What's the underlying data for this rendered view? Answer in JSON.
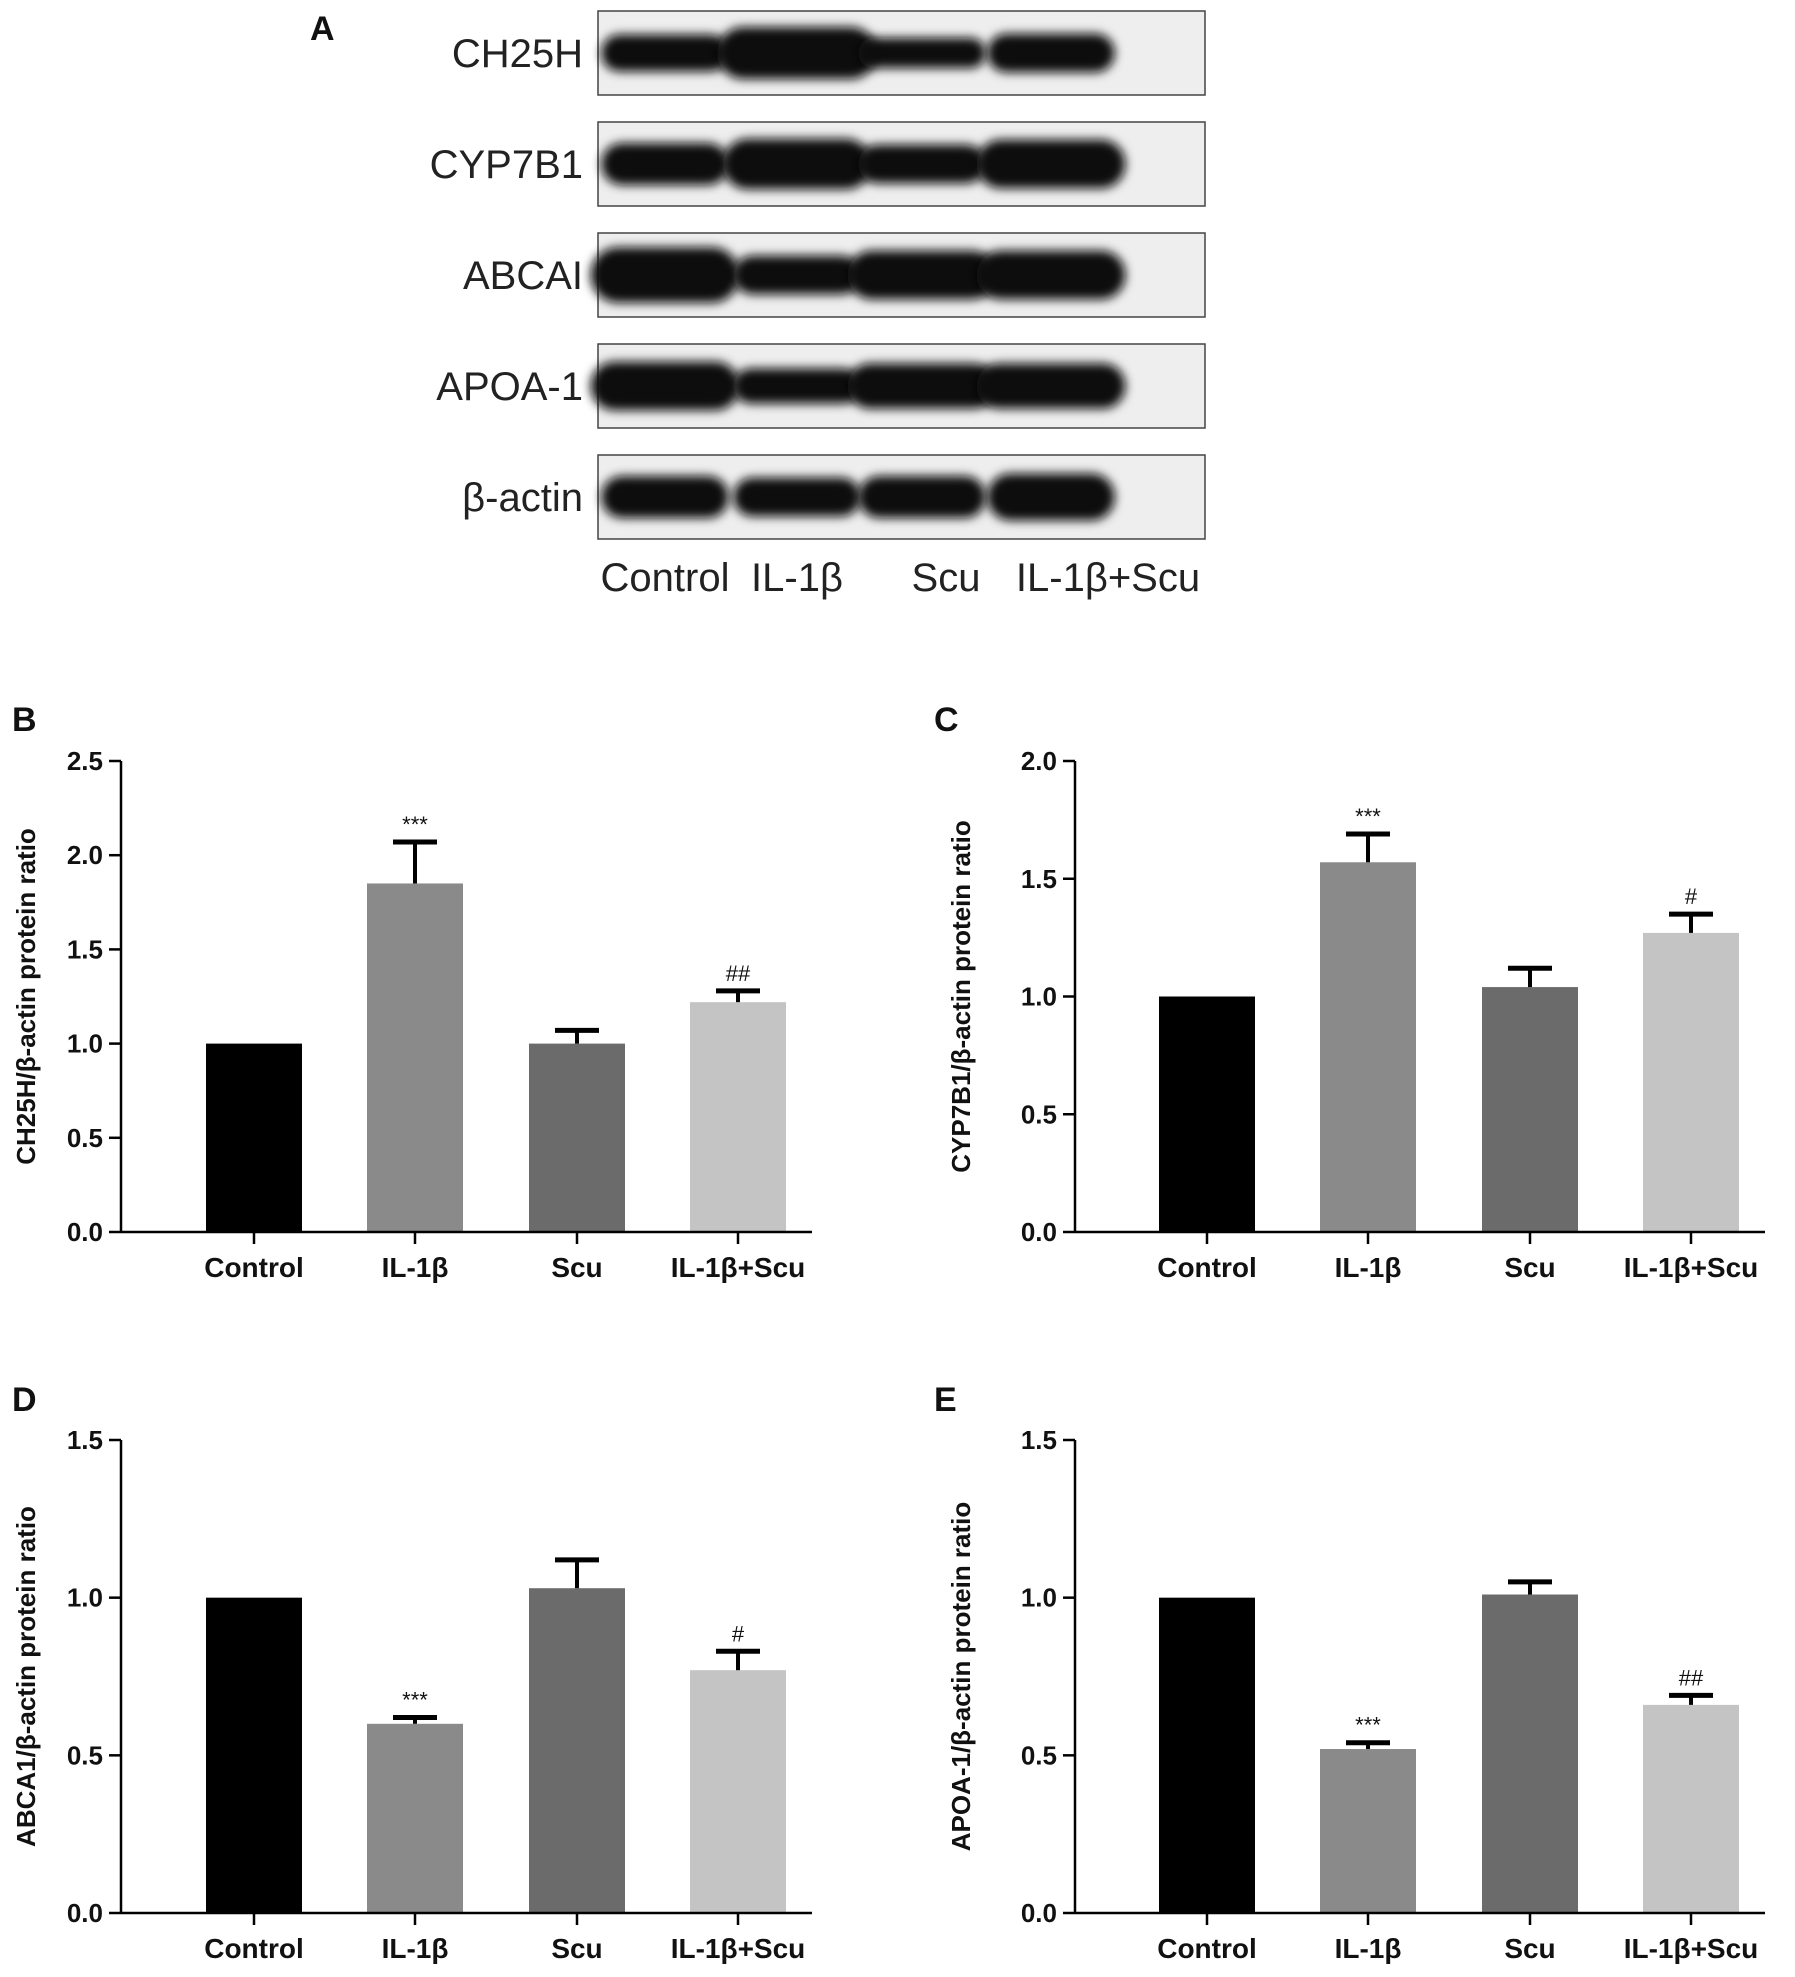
{
  "blot": {
    "letter": "A",
    "rows": [
      "CH25H",
      "CYP7B1",
      "ABCAI",
      "APOA-1",
      "β-actin"
    ],
    "lanes": [
      "Control",
      "IL-1β",
      "Scu",
      "IL-1β+Scu"
    ],
    "band_colors": {
      "background": "#eeeeee",
      "band": "#101010"
    }
  },
  "chart_data": [
    {
      "type": "bar",
      "letter": "B",
      "ylabel": "CH25H/β-actin protein ratio",
      "categories": [
        "Control",
        "IL-1β",
        "Scu",
        "IL-1β+Scu"
      ],
      "values": [
        1.0,
        1.85,
        1.0,
        1.22
      ],
      "errors": [
        0,
        0.22,
        0.07,
        0.06
      ],
      "significance": [
        "",
        "***",
        "",
        "##"
      ],
      "ylim": [
        0,
        2.5
      ],
      "yticks": [
        "0.0",
        "0.5",
        "1.0",
        "1.5",
        "2.0",
        "2.5"
      ],
      "colors": [
        "#000000",
        "#8a8a8a",
        "#6b6b6b",
        "#c4c4c4"
      ]
    },
    {
      "type": "bar",
      "letter": "C",
      "ylabel": "CYP7B1/β-actin protein ratio",
      "categories": [
        "Control",
        "IL-1β",
        "Scu",
        "IL-1β+Scu"
      ],
      "values": [
        1.0,
        1.57,
        1.04,
        1.27
      ],
      "errors": [
        0,
        0.12,
        0.08,
        0.08
      ],
      "significance": [
        "",
        "***",
        "",
        "#"
      ],
      "ylim": [
        0,
        2.0
      ],
      "yticks": [
        "0.0",
        "0.5",
        "1.0",
        "1.5",
        "2.0"
      ],
      "colors": [
        "#000000",
        "#8a8a8a",
        "#6b6b6b",
        "#c4c4c4"
      ]
    },
    {
      "type": "bar",
      "letter": "D",
      "ylabel": "ABCA1/β-actin protein ratio",
      "categories": [
        "Control",
        "IL-1β",
        "Scu",
        "IL-1β+Scu"
      ],
      "values": [
        1.0,
        0.6,
        1.03,
        0.77
      ],
      "errors": [
        0,
        0.02,
        0.09,
        0.06
      ],
      "significance": [
        "",
        "***",
        "",
        "#"
      ],
      "ylim": [
        0,
        1.5
      ],
      "yticks": [
        "0.0",
        "0.5",
        "1.0",
        "1.5"
      ],
      "colors": [
        "#000000",
        "#8a8a8a",
        "#6b6b6b",
        "#c4c4c4"
      ]
    },
    {
      "type": "bar",
      "letter": "E",
      "ylabel": "APOA-1/β-actin protein ratio",
      "categories": [
        "Control",
        "IL-1β",
        "Scu",
        "IL-1β+Scu"
      ],
      "values": [
        1.0,
        0.52,
        1.01,
        0.66
      ],
      "errors": [
        0,
        0.02,
        0.04,
        0.03
      ],
      "significance": [
        "",
        "***",
        "",
        "##"
      ],
      "ylim": [
        0,
        1.5
      ],
      "yticks": [
        "0.0",
        "0.5",
        "1.0",
        "1.5"
      ],
      "colors": [
        "#000000",
        "#8a8a8a",
        "#6b6b6b",
        "#c4c4c4"
      ]
    }
  ]
}
